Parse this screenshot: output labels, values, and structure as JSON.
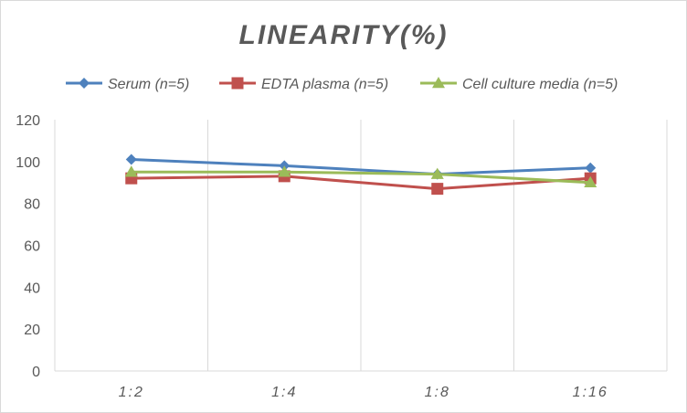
{
  "chart_data": {
    "type": "line",
    "title": "LINEARITY(%)",
    "xlabel": "",
    "ylabel": "",
    "categories": [
      "1:2",
      "1:4",
      "1:8",
      "1:16"
    ],
    "ylim": [
      0,
      120
    ],
    "yticks": [
      0,
      20,
      40,
      60,
      80,
      100,
      120
    ],
    "grid": "vertical",
    "legend_position": "top",
    "series": [
      {
        "name": "Serum (n=5)",
        "values": [
          101,
          98,
          94,
          97
        ],
        "color": "#4e81bd",
        "marker": "diamond"
      },
      {
        "name": "EDTA plasma (n=5)",
        "values": [
          92,
          93,
          87,
          92
        ],
        "color": "#c0504d",
        "marker": "square"
      },
      {
        "name": "Cell culture media (n=5)",
        "values": [
          95,
          95,
          94,
          90
        ],
        "color": "#9bbb59",
        "marker": "triangle"
      }
    ]
  }
}
